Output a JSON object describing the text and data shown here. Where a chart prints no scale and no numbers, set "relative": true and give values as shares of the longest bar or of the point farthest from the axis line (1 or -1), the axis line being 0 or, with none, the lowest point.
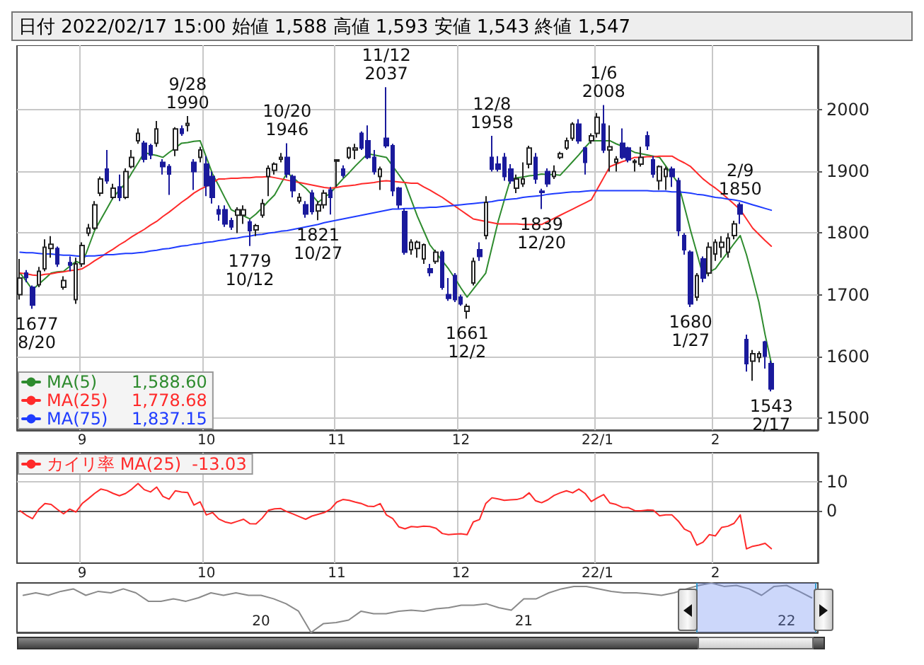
{
  "chart_data": [
    {
      "type": "candlestick",
      "title": "日付 2022/02/17 15:00 始値 1,588 高値 1,593 安値 1,543 終値 1,547",
      "categories": [
        null,
        null,
        null,
        null,
        null,
        null,
        null,
        null,
        null,
        null,
        "9",
        null,
        null,
        null,
        null,
        null,
        null,
        null,
        null,
        null,
        null,
        null,
        null,
        null,
        null,
        null,
        null,
        null,
        null,
        null,
        "10",
        null,
        null,
        null,
        null,
        null,
        null,
        null,
        null,
        null,
        null,
        null,
        null,
        null,
        null,
        null,
        null,
        null,
        null,
        null,
        null,
        "11",
        null,
        null,
        null,
        null,
        null,
        null,
        null,
        null,
        null,
        null,
        null,
        null,
        null,
        null,
        null,
        null,
        null,
        null,
        null,
        "12",
        null,
        null,
        null,
        null,
        null,
        null,
        null,
        null,
        null,
        null,
        null,
        null,
        null,
        null,
        null,
        null,
        null,
        null,
        null,
        null,
        null,
        "22/1",
        null,
        null,
        null,
        null,
        null,
        null,
        null,
        null,
        null,
        null,
        null,
        null,
        null,
        null,
        null,
        null,
        null,
        null,
        "2",
        null,
        null,
        null,
        null,
        null,
        null,
        null,
        null,
        null
      ],
      "ohlc": [
        [
          1700,
          1758,
          1692,
          1727
        ],
        [
          1735,
          1740,
          1720,
          1728
        ],
        [
          1712,
          1715,
          1677,
          1683
        ],
        [
          1716,
          1745,
          1712,
          1738
        ],
        [
          1742,
          1790,
          1738,
          1777
        ],
        [
          1775,
          1795,
          1760,
          1782
        ],
        [
          1775,
          1778,
          1745,
          1750
        ],
        [
          1712,
          1730,
          1708,
          1723
        ],
        [
          1752,
          1762,
          1738,
          1748
        ],
        [
          1692,
          1760,
          1685,
          1750
        ],
        [
          1750,
          1785,
          1745,
          1780
        ],
        [
          1800,
          1815,
          1795,
          1808
        ],
        [
          1808,
          1852,
          1805,
          1846
        ],
        [
          1865,
          1892,
          1860,
          1888
        ],
        [
          1904,
          1935,
          1880,
          1885
        ],
        [
          1858,
          1880,
          1855,
          1873
        ],
        [
          1875,
          1895,
          1852,
          1858
        ],
        [
          1858,
          1905,
          1855,
          1900
        ],
        [
          1908,
          1935,
          1905,
          1923
        ],
        [
          1950,
          1970,
          1945,
          1962
        ],
        [
          1946,
          1950,
          1915,
          1920
        ],
        [
          1942,
          1945,
          1920,
          1927
        ],
        [
          1946,
          1982,
          1940,
          1969
        ],
        [
          1915,
          1920,
          1895,
          1908
        ],
        [
          1908,
          1912,
          1862,
          1896
        ],
        [
          1935,
          1972,
          1925,
          1969
        ],
        [
          1969,
          1975,
          1958,
          1962
        ],
        [
          1975,
          1990,
          1965,
          1978
        ],
        [
          1915,
          1920,
          1870,
          1900
        ],
        [
          1923,
          1940,
          1915,
          1935
        ],
        [
          1912,
          1925,
          1860,
          1877
        ],
        [
          1892,
          1900,
          1848,
          1858
        ],
        [
          1838,
          1845,
          1820,
          1831
        ],
        [
          1838,
          1845,
          1810,
          1815
        ],
        [
          1820,
          1825,
          1805,
          1810
        ],
        [
          1829,
          1842,
          1800,
          1838
        ],
        [
          1829,
          1845,
          1815,
          1838
        ],
        [
          1818,
          1822,
          1779,
          1804
        ],
        [
          1805,
          1815,
          1795,
          1812
        ],
        [
          1829,
          1855,
          1825,
          1848
        ],
        [
          1892,
          1910,
          1860,
          1905
        ],
        [
          1902,
          1915,
          1895,
          1912
        ],
        [
          1920,
          1930,
          1915,
          1923
        ],
        [
          1923,
          1946,
          1890,
          1896
        ],
        [
          1892,
          1895,
          1858,
          1869
        ],
        [
          1852,
          1865,
          1848,
          1858
        ],
        [
          1846,
          1852,
          1825,
          1831
        ],
        [
          1865,
          1870,
          1830,
          1835
        ],
        [
          1836,
          1852,
          1821,
          1846
        ],
        [
          1846,
          1870,
          1840,
          1865
        ],
        [
          1870,
          1875,
          1830,
          1858
        ],
        [
          1917,
          1920,
          1875,
          1919
        ],
        [
          1904,
          1910,
          1890,
          1894
        ],
        [
          1923,
          1940,
          1920,
          1938
        ],
        [
          1935,
          1945,
          1920,
          1938
        ],
        [
          1962,
          1965,
          1935,
          1938
        ],
        [
          1950,
          1975,
          1920,
          1923
        ],
        [
          1923,
          1935,
          1895,
          1900
        ],
        [
          1892,
          1908,
          1870,
          1904
        ],
        [
          1954,
          2037,
          1938,
          1942
        ],
        [
          1942,
          1945,
          1860,
          1869
        ],
        [
          1873,
          1875,
          1840,
          1846
        ],
        [
          1835,
          1840,
          1765,
          1769
        ],
        [
          1773,
          1790,
          1765,
          1785
        ],
        [
          1775,
          1788,
          1760,
          1785
        ],
        [
          1758,
          1783,
          1750,
          1781
        ],
        [
          1742,
          1750,
          1730,
          1736
        ],
        [
          1754,
          1773,
          1750,
          1769
        ],
        [
          1769,
          1772,
          1708,
          1712
        ],
        [
          1700,
          1727,
          1690,
          1694
        ],
        [
          1731,
          1735,
          1688,
          1692
        ],
        [
          1696,
          1700,
          1682,
          1685
        ],
        [
          1673,
          1685,
          1661,
          1681
        ],
        [
          1719,
          1760,
          1715,
          1754
        ],
        [
          1773,
          1785,
          1755,
          1762
        ],
        [
          1796,
          1860,
          1790,
          1850
        ],
        [
          1923,
          1958,
          1900,
          1904
        ],
        [
          1912,
          1925,
          1900,
          1904
        ],
        [
          1923,
          1930,
          1885,
          1892
        ],
        [
          1904,
          1912,
          1880,
          1885
        ],
        [
          1873,
          1895,
          1865,
          1888
        ],
        [
          1880,
          1915,
          1875,
          1888
        ],
        [
          1912,
          1942,
          1905,
          1938
        ],
        [
          1923,
          1930,
          1880,
          1888
        ],
        [
          1868,
          1872,
          1839,
          1866
        ],
        [
          1900,
          1905,
          1875,
          1880
        ],
        [
          1892,
          1910,
          1888,
          1900
        ],
        [
          1923,
          1932,
          1920,
          1929
        ],
        [
          1938,
          1955,
          1935,
          1950
        ],
        [
          1954,
          1980,
          1950,
          1977
        ],
        [
          1977,
          1985,
          1945,
          1950
        ],
        [
          1938,
          1940,
          1895,
          1915
        ],
        [
          1950,
          1962,
          1945,
          1958
        ],
        [
          1962,
          1995,
          1955,
          1988
        ],
        [
          1977,
          2008,
          1930,
          1935
        ],
        [
          1935,
          1975,
          1900,
          1940
        ],
        [
          1915,
          1925,
          1900,
          1920
        ],
        [
          1946,
          1970,
          1920,
          1923
        ],
        [
          1938,
          1940,
          1915,
          1919
        ],
        [
          1915,
          1920,
          1900,
          1917
        ],
        [
          1912,
          1940,
          1908,
          1923
        ],
        [
          1958,
          1965,
          1935,
          1942
        ],
        [
          1919,
          1925,
          1890,
          1896
        ],
        [
          1885,
          1910,
          1870,
          1908
        ],
        [
          1892,
          1908,
          1870,
          1904
        ],
        [
          1904,
          1908,
          1875,
          1892
        ],
        [
          1885,
          1890,
          1795,
          1804
        ],
        [
          1796,
          1800,
          1765,
          1773
        ],
        [
          1769,
          1772,
          1680,
          1685
        ],
        [
          1696,
          1735,
          1690,
          1731
        ],
        [
          1758,
          1762,
          1720,
          1727
        ],
        [
          1735,
          1785,
          1730,
          1777
        ],
        [
          1766,
          1790,
          1755,
          1785
        ],
        [
          1777,
          1795,
          1760,
          1785
        ],
        [
          1769,
          1800,
          1760,
          1792
        ],
        [
          1796,
          1820,
          1790,
          1815
        ],
        [
          1846,
          1850,
          1815,
          1831
        ],
        [
          1627,
          1635,
          1575,
          1588
        ],
        [
          1592,
          1610,
          1560,
          1604
        ],
        [
          1598,
          1608,
          1590,
          1604
        ],
        [
          1623,
          1625,
          1580,
          1600
        ],
        [
          1588,
          1593,
          1543,
          1547
        ]
      ],
      "series": [
        {
          "type": "line",
          "name": "MA(5)",
          "color": "#2e8b2e",
          "values": [
            1735,
            1722,
            1708,
            1717,
            1726,
            1735,
            1737,
            1738,
            1746,
            1754,
            1750,
            1777,
            1804,
            1822,
            1840,
            1858,
            1870,
            1881,
            1898,
            1914,
            1931,
            1928,
            1926,
            1923,
            1931,
            1938,
            1946,
            1947,
            1949,
            1950,
            1923,
            1896,
            1877,
            1857,
            1838,
            1833,
            1828,
            1823,
            1831,
            1841,
            1852,
            1862,
            1880,
            1898,
            1890,
            1881,
            1873,
            1862,
            1850,
            1858,
            1865,
            1877,
            1888,
            1898,
            1909,
            1919,
            1929,
            1927,
            1925,
            1923,
            1909,
            1895,
            1881,
            1854,
            1827,
            1804,
            1781,
            1768,
            1755,
            1742,
            1727,
            1711,
            1696,
            1709,
            1722,
            1735,
            1777,
            1819,
            1854,
            1888,
            1890,
            1891,
            1893,
            1894,
            1896,
            1895,
            1895,
            1894,
            1905,
            1916,
            1927,
            1939,
            1950,
            1950,
            1950,
            1950,
            1945,
            1941,
            1936,
            1931,
            1929,
            1927,
            1925,
            1923,
            1909,
            1895,
            1881,
            1843,
            1804,
            1768,
            1731,
            1737,
            1742,
            1756,
            1769,
            1783,
            1796,
            1765,
            1727,
            1688,
            1635,
            1588.6
          ]
        },
        {
          "type": "line",
          "name": "MA(25)",
          "color": "#ff2a2a",
          "values": [
            1735,
            1734,
            1732,
            1731,
            1733,
            1734,
            1736,
            1737,
            1739,
            1740,
            1742,
            1748,
            1755,
            1761,
            1768,
            1774,
            1781,
            1787,
            1794,
            1800,
            1806,
            1813,
            1819,
            1827,
            1834,
            1842,
            1850,
            1857,
            1865,
            1871,
            1876,
            1882,
            1888,
            1888,
            1889,
            1889,
            1890,
            1890,
            1891,
            1891,
            1892,
            1890,
            1888,
            1886,
            1884,
            1882,
            1880,
            1878,
            1876,
            1874,
            1873,
            1874,
            1876,
            1877,
            1878,
            1880,
            1881,
            1882,
            1884,
            1885,
            1884,
            1883,
            1882,
            1881,
            1881,
            1875,
            1870,
            1864,
            1858,
            1851,
            1844,
            1837,
            1830,
            1823,
            1821,
            1819,
            1817,
            1815,
            1815,
            1815,
            1815,
            1814,
            1814,
            1814,
            1814,
            1819,
            1824,
            1829,
            1834,
            1839,
            1844,
            1849,
            1854,
            1872,
            1890,
            1908,
            1912,
            1916,
            1919,
            1923,
            1923,
            1924,
            1924,
            1925,
            1925,
            1925,
            1919,
            1914,
            1908,
            1898,
            1888,
            1880,
            1873,
            1865,
            1856,
            1847,
            1838,
            1823,
            1808,
            1798,
            1788,
            1778.68
          ]
        },
        {
          "type": "line",
          "name": "MA(75)",
          "color": "#1f3cff",
          "values": [
            1769,
            1768,
            1768,
            1767,
            1766,
            1766,
            1765,
            1764,
            1764,
            1763,
            1762,
            1763,
            1763,
            1764,
            1765,
            1765,
            1766,
            1767,
            1767,
            1768,
            1769,
            1771,
            1772,
            1774,
            1775,
            1777,
            1779,
            1780,
            1782,
            1783,
            1785,
            1786,
            1788,
            1789,
            1791,
            1792,
            1794,
            1795,
            1797,
            1798,
            1800,
            1801,
            1803,
            1804,
            1806,
            1808,
            1810,
            1812,
            1814,
            1817,
            1819,
            1821,
            1823,
            1825,
            1827,
            1829,
            1831,
            1833,
            1835,
            1837,
            1839,
            1839,
            1840,
            1840,
            1841,
            1841,
            1842,
            1842,
            1843,
            1844,
            1845,
            1846,
            1847,
            1848,
            1849,
            1850,
            1851,
            1853,
            1854,
            1855,
            1856,
            1858,
            1859,
            1860,
            1861,
            1863,
            1864,
            1865,
            1866,
            1867,
            1867,
            1868,
            1869,
            1869,
            1869,
            1869,
            1869,
            1869,
            1869,
            1869,
            1869,
            1869,
            1868,
            1868,
            1868,
            1867,
            1867,
            1866,
            1865,
            1863,
            1862,
            1860,
            1858,
            1857,
            1855,
            1854,
            1852,
            1849,
            1846,
            1843,
            1840,
            1837.15
          ]
        }
      ],
      "annotations": [
        "1,588.60",
        "1,778.68",
        "1,837.15",
        {
          "text": "1677\n8/20",
          "y": 1677
        },
        {
          "text": "9/28\n1990",
          "y": 1990
        },
        {
          "text": "10/20\n1946",
          "y": 1946
        },
        {
          "text": "1779\n10/12",
          "y": 1779
        },
        {
          "text": "1821\n10/27",
          "y": 1821
        },
        {
          "text": "11/12\n2037",
          "y": 2037
        },
        {
          "text": "1661\n12/2",
          "y": 1661
        },
        {
          "text": "12/8\n1958",
          "y": 1958
        },
        {
          "text": "1839\n12/20",
          "y": 1839
        },
        {
          "text": "1/6\n2008",
          "y": 2008
        },
        {
          "text": "1680\n1/27",
          "y": 1680
        },
        {
          "text": "2/9\n1850",
          "y": 1850
        },
        {
          "text": "1543\n2/17",
          "y": 1543
        }
      ],
      "ylim": [
        1480,
        2105
      ],
      "yticks": [
        1500,
        1600,
        1700,
        1800,
        1900,
        2000
      ],
      "grid": true,
      "legend": "bottom left",
      "marker": "none"
    },
    {
      "type": "line",
      "categories": [
        null,
        null,
        null,
        null,
        null,
        null,
        null,
        null,
        null,
        null,
        "9",
        null,
        null,
        null,
        null,
        null,
        null,
        null,
        null,
        null,
        null,
        null,
        null,
        null,
        null,
        null,
        null,
        null,
        null,
        null,
        "10",
        null,
        null,
        null,
        null,
        null,
        null,
        null,
        null,
        null,
        null,
        null,
        null,
        null,
        null,
        null,
        null,
        null,
        null,
        null,
        null,
        "11",
        null,
        null,
        null,
        null,
        null,
        null,
        null,
        null,
        null,
        null,
        null,
        null,
        null,
        null,
        null,
        null,
        null,
        null,
        null,
        "12",
        null,
        null,
        null,
        null,
        null,
        null,
        null,
        null,
        null,
        null,
        null,
        null,
        null,
        null,
        null,
        null,
        null,
        null,
        null,
        null,
        null,
        "22/1",
        null,
        null,
        null,
        null,
        null,
        null,
        null,
        null,
        null,
        null,
        null,
        null,
        null,
        null,
        null,
        null,
        null,
        null,
        "2",
        null,
        null,
        null,
        null,
        null,
        null,
        null,
        null,
        null
      ],
      "series": [
        {
          "name": "カイリ率 MA(25)",
          "color": "#ff2a2a",
          "values": [
            0,
            -1.5,
            -2.7,
            0.5,
            2.5,
            2.2,
            0.5,
            -1,
            0.6,
            -0.4,
            2.5,
            4.2,
            6,
            7.5,
            7,
            6,
            5.2,
            6,
            7.5,
            9.4,
            7.3,
            6.5,
            8.2,
            5,
            4,
            6.9,
            6.5,
            6.3,
            2,
            3.1,
            -1.4,
            -0.6,
            -2.8,
            -3.8,
            -4.3,
            -3.6,
            -2.9,
            -4.4,
            -4.5,
            -2.5,
            0.2,
            0.7,
            0.8,
            -0.3,
            -1.1,
            -2,
            -2.9,
            -1.8,
            -1.2,
            -0.6,
            0.6,
            3,
            3.9,
            3.6,
            3,
            2.5,
            1.6,
            1.5,
            2.5,
            -1.4,
            -2.6,
            -5.5,
            -6.2,
            -5.4,
            -5.6,
            -5.3,
            -5.4,
            -6,
            -7.8,
            -8.2,
            -8,
            -7.9,
            -8.2,
            -3.8,
            -3,
            2.5,
            4.5,
            4.1,
            3.6,
            3.8,
            3.9,
            4.5,
            6.2,
            3.5,
            2.8,
            3.8,
            5.3,
            6.2,
            6.9,
            6.2,
            7.5,
            6,
            3.2,
            4.5,
            5.6,
            2.7,
            2.2,
            1.2,
            1.1,
            0.1,
            0,
            0.3,
            0.2,
            -1.7,
            -1.4,
            -1.4,
            -3.5,
            -6.3,
            -7.3,
            -11.8,
            -10.8,
            -8.2,
            -8.6,
            -5.7,
            -5.3,
            -4.3,
            -1.4,
            -13.1,
            -12.2,
            -11.8,
            -11.2,
            -13.03
          ]
        }
      ],
      "annotations": [
        "-13.03"
      ],
      "ylim": [
        -18,
        20
      ],
      "yticks": [
        0,
        10
      ],
      "grid": true,
      "legend": "top left",
      "marker": "none"
    },
    {
      "type": "line",
      "relative": true,
      "categories": [
        null,
        null,
        null,
        null,
        null,
        null,
        null,
        null,
        null,
        null,
        null,
        null,
        null,
        null,
        null,
        null,
        null,
        null,
        null,
        "20",
        null,
        null,
        null,
        null,
        null,
        null,
        null,
        null,
        null,
        null,
        null,
        null,
        null,
        null,
        null,
        null,
        null,
        null,
        null,
        null,
        "21",
        null,
        null,
        null,
        null,
        null,
        null,
        null,
        null,
        null,
        null,
        null,
        null,
        null,
        null,
        null,
        null,
        null,
        null,
        null,
        null,
        "22",
        null,
        null
      ],
      "color": "#8a8a8a",
      "values": [
        0.75,
        0.8,
        0.75,
        0.83,
        0.88,
        0.75,
        0.83,
        0.8,
        0.88,
        0.8,
        0.63,
        0.63,
        0.68,
        0.63,
        0.7,
        0.8,
        0.75,
        0.8,
        0.75,
        0.75,
        0.68,
        0.58,
        0.43,
        0,
        0.18,
        0.2,
        0.25,
        0.43,
        0.38,
        0.38,
        0.43,
        0.45,
        0.43,
        0.48,
        0.5,
        0.55,
        0.55,
        0.58,
        0.5,
        0.45,
        0.68,
        0.68,
        0.8,
        0.88,
        0.93,
        0.93,
        0.88,
        0.83,
        0.8,
        0.8,
        0.78,
        0.75,
        0.8,
        0.88,
        0.95,
        1,
        0.93,
        0.95,
        0.88,
        0.75,
        0.93,
        0.95,
        0.83,
        0.7
      ],
      "marker": "none"
    }
  ]
}
